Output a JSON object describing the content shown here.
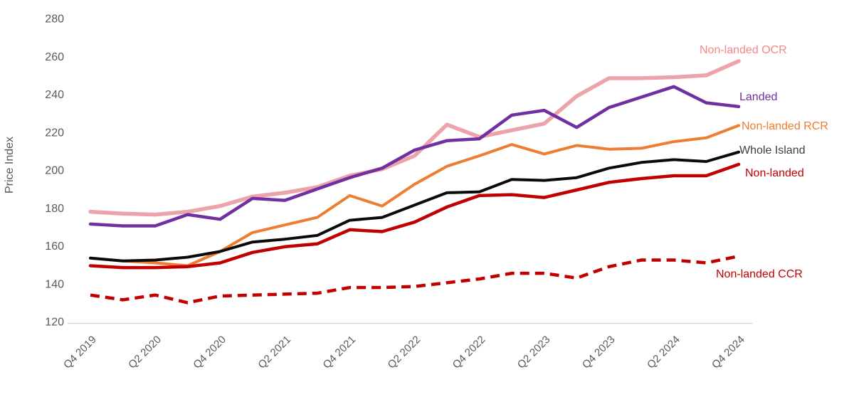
{
  "chart_data": {
    "type": "line",
    "title": "",
    "ylabel": "Price Index",
    "xlabel": "",
    "ylim": [
      120,
      280
    ],
    "ytick_step": 20,
    "ytick_labels": [
      "120",
      "140",
      "160",
      "180",
      "200",
      "220",
      "240",
      "260",
      "280"
    ],
    "grid": false,
    "x_tick_interval": 2,
    "axis_line_color": "#D9D9D9",
    "tick_label_color": "#595959",
    "categories": [
      "Q4 2019",
      "Q1 2020",
      "Q2 2020",
      "Q3 2020",
      "Q4 2020",
      "Q1 2021",
      "Q2 2021",
      "Q3 2021",
      "Q4 2021",
      "Q1 2022",
      "Q2 2022",
      "Q3 2022",
      "Q4 2022",
      "Q1 2023",
      "Q2 2023",
      "Q3 2023",
      "Q4 2023",
      "Q1 2024",
      "Q2 2024",
      "Q3 2024",
      "Q4 2024"
    ],
    "shown_x_tick_labels": [
      "Q4 2019",
      "Q2 2020",
      "Q4 2020",
      "Q2 2021",
      "Q4 2021",
      "Q2 2022",
      "Q4 2022",
      "Q2 2023",
      "Q4 2023",
      "Q2 2024",
      "Q4 2024"
    ],
    "legend_position": "line-end-labels",
    "series": [
      {
        "name": "Non-landed OCR",
        "line_color": "#ECA3A9",
        "label_color": "#F5868B",
        "dashed": false,
        "stroke_width": 5.5,
        "values": [
          178,
          177,
          176.5,
          178,
          181,
          186,
          188,
          191,
          197,
          200.5,
          207.5,
          224,
          217.5,
          221,
          224.5,
          239,
          248.5,
          248.5,
          249,
          250,
          257.5
        ]
      },
      {
        "name": "Non-landed RCR",
        "line_color": "#ED7D31",
        "label_color": "#ED7D31",
        "dashed": false,
        "stroke_width": 4,
        "values": [
          153.5,
          152,
          151,
          149.5,
          157,
          167,
          171,
          175,
          186.5,
          181,
          192.5,
          202,
          207.5,
          213.5,
          208.5,
          213,
          211,
          211.5,
          215,
          217,
          223.5
        ]
      },
      {
        "name": "Whole Island",
        "line_color": "#0A0A0A",
        "label_color": "#404040",
        "dashed": false,
        "stroke_width": 4,
        "values": [
          153.5,
          152,
          152.5,
          154,
          157,
          162,
          163.5,
          165.5,
          173.5,
          175,
          181.5,
          188,
          188.5,
          195,
          194.5,
          196,
          201,
          204,
          205.5,
          204.5,
          209.5
        ]
      },
      {
        "name": "Non-landed",
        "line_color": "#C00000",
        "label_color": "#C00000",
        "dashed": false,
        "stroke_width": 4.5,
        "values": [
          149.5,
          148.5,
          148.5,
          149,
          151,
          156.5,
          159.5,
          161,
          168.5,
          167.5,
          172.5,
          180.5,
          186.5,
          187,
          185.5,
          189.5,
          193.5,
          195.5,
          197,
          197,
          203
        ]
      },
      {
        "name": "Non-landed CCR",
        "line_color": "#C00000",
        "label_color": "#C00000",
        "dashed": true,
        "stroke_width": 4.5,
        "values": [
          134,
          131.5,
          134,
          130,
          133.5,
          134,
          134.5,
          135,
          138,
          138,
          138.5,
          140.5,
          142.5,
          145.5,
          145.5,
          143,
          149,
          152.5,
          152.5,
          151,
          154.5
        ]
      },
      {
        "name": "Landed",
        "line_color": "#7030A0",
        "label_color": "#7030A0",
        "dashed": false,
        "stroke_width": 4.5,
        "values": [
          171.5,
          170.5,
          170.5,
          176.5,
          174,
          185,
          184,
          190,
          196,
          201,
          210.5,
          215.5,
          216.5,
          229,
          231.5,
          222.5,
          233,
          238.5,
          244,
          235.5,
          233.5
        ]
      }
    ]
  }
}
